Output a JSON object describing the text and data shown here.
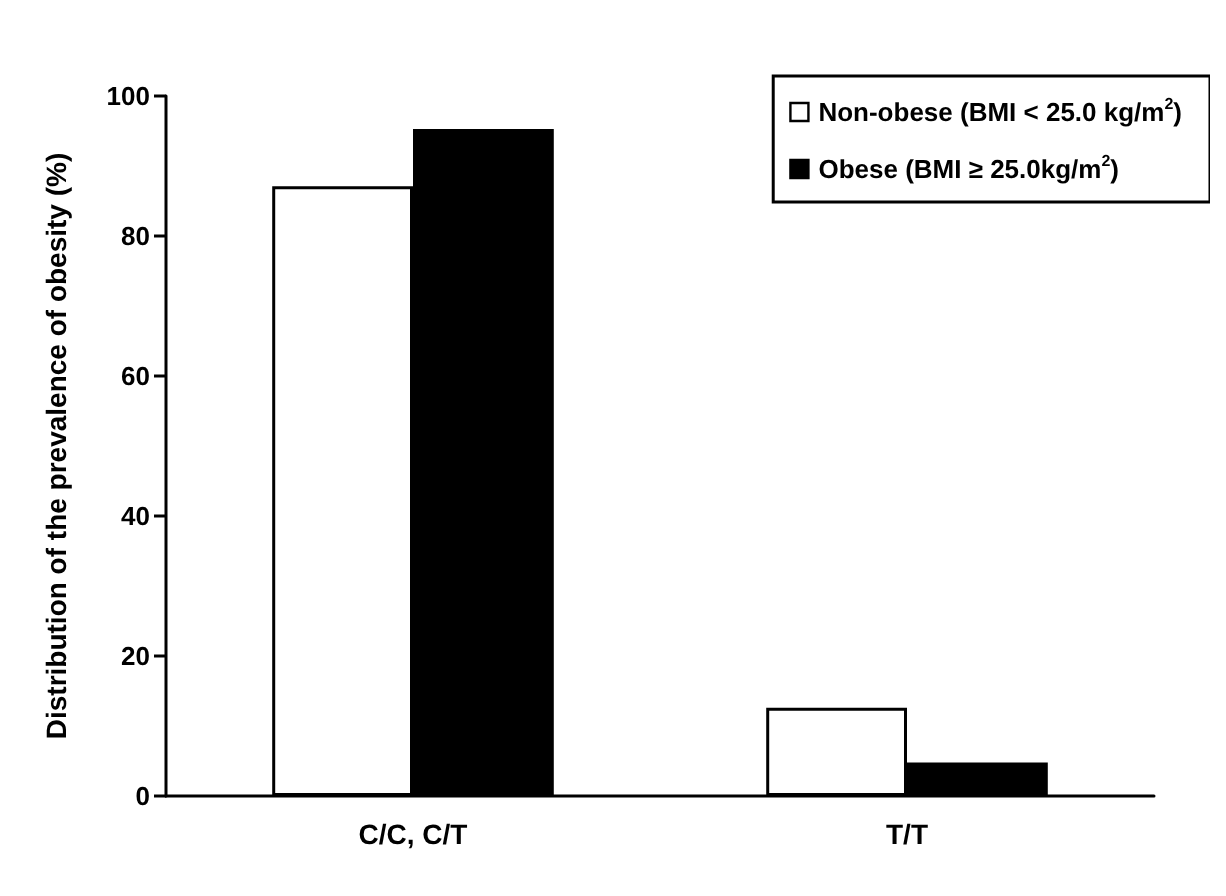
{
  "chart_data": {
    "type": "bar",
    "ylabel": "Distribution of the prevalence of obesity (%)",
    "categories": [
      "C/C, C/T",
      "T/T"
    ],
    "series": [
      {
        "name": "Non-obese (BMI < 25.0 kg/m$^{2}$)",
        "color": "#ffffff",
        "values": [
          87.1,
          12.6
        ]
      },
      {
        "name": "Obese (BMI ≥ 25.0kg/m$^{2}$)",
        "color": "#000000",
        "values": [
          95.3,
          4.8
        ]
      }
    ],
    "ylim": [
      0,
      100
    ],
    "yticks": [
      0,
      20,
      40,
      60,
      80,
      100
    ],
    "grid": false,
    "legend": "top right"
  }
}
